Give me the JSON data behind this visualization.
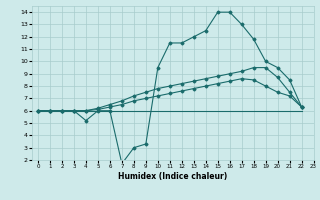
{
  "xlabel": "Humidex (Indice chaleur)",
  "xlim": [
    -0.5,
    23
  ],
  "ylim": [
    2,
    14.5
  ],
  "yticks": [
    2,
    3,
    4,
    5,
    6,
    7,
    8,
    9,
    10,
    11,
    12,
    13,
    14
  ],
  "xticks": [
    0,
    1,
    2,
    3,
    4,
    5,
    6,
    7,
    8,
    9,
    10,
    11,
    12,
    13,
    14,
    15,
    16,
    17,
    18,
    19,
    20,
    21,
    22,
    23
  ],
  "background_color": "#ceeaea",
  "grid_color": "#a8cccc",
  "line_color": "#1a6b6b",
  "lines": [
    {
      "x": [
        0,
        1,
        2,
        3,
        4,
        5,
        6,
        7,
        8,
        9,
        10,
        11,
        12,
        13,
        14,
        15,
        16,
        17,
        18,
        19,
        20,
        21,
        22
      ],
      "y": [
        6,
        6,
        6,
        6,
        5.2,
        6,
        6,
        1.7,
        3.0,
        3.3,
        9.5,
        11.5,
        11.5,
        12.0,
        12.5,
        14.0,
        14.0,
        13.0,
        11.8,
        10.0,
        9.5,
        8.5,
        6.3
      ]
    },
    {
      "x": [
        0,
        22
      ],
      "y": [
        6,
        6
      ]
    },
    {
      "x": [
        0,
        1,
        2,
        3,
        4,
        5,
        6,
        7,
        8,
        9,
        10,
        11,
        12,
        13,
        14,
        15,
        16,
        17,
        18,
        19,
        20,
        21,
        22
      ],
      "y": [
        6,
        6,
        6,
        6,
        6,
        6.2,
        6.5,
        6.8,
        7.2,
        7.5,
        7.8,
        8.0,
        8.2,
        8.4,
        8.6,
        8.8,
        9.0,
        9.2,
        9.5,
        9.5,
        8.7,
        7.5,
        6.3
      ]
    },
    {
      "x": [
        0,
        1,
        2,
        3,
        4,
        5,
        6,
        7,
        8,
        9,
        10,
        11,
        12,
        13,
        14,
        15,
        16,
        17,
        18,
        19,
        20,
        21,
        22
      ],
      "y": [
        6,
        6,
        6,
        6,
        6,
        6.1,
        6.3,
        6.5,
        6.8,
        7.0,
        7.2,
        7.4,
        7.6,
        7.8,
        8.0,
        8.2,
        8.4,
        8.6,
        8.5,
        8.0,
        7.5,
        7.2,
        6.3
      ]
    }
  ]
}
